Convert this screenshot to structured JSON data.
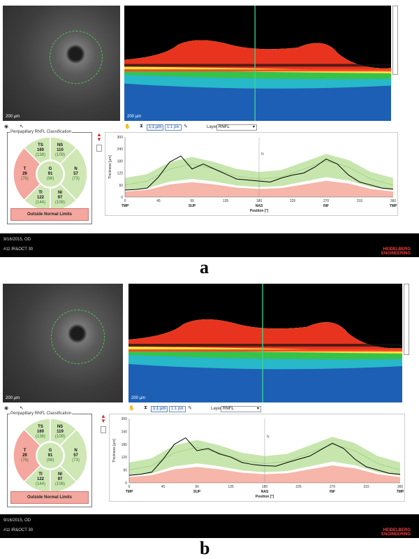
{
  "colors": {
    "normal_green": "#cfe7b5",
    "borderline": "#d7ecb9",
    "outside_red": "#f3a79e",
    "measurement_line": "#000000",
    "green_band": "#b9e09a",
    "red_band": "#f6b6aa"
  },
  "icons": [
    "eye-icon",
    "cursor-icon",
    "hourglass-icon",
    "paint-icon"
  ],
  "panels": [
    {
      "letter": "a",
      "scale_fundus": "200 µm",
      "scale_oct": "200 µm",
      "toolbar": {
        "btn1": "1:1 µm",
        "btn2": "1:1 pix",
        "layer_label": "Layer:",
        "layer_value": "RNFL"
      },
      "rnfl": {
        "title": "Peripapillary RNFL Classification",
        "sectors": {
          "TS": {
            "label": "TS",
            "value": "160",
            "ref": "(138)"
          },
          "NS": {
            "label": "NS",
            "value": "110",
            "ref": "(109)"
          },
          "T": {
            "label": "T",
            "value": "29",
            "ref": "(76)"
          },
          "G": {
            "label": "G",
            "value": "91",
            "ref": "(98)"
          },
          "N": {
            "label": "N",
            "value": "57",
            "ref": "(73)"
          },
          "TI": {
            "label": "TI",
            "value": "122",
            "ref": "(144)"
          },
          "NI": {
            "label": "NI",
            "value": "97",
            "ref": "(108)"
          }
        },
        "classification": "Outside Normal Limits"
      },
      "status": {
        "date_eye": "9/16/2015, OD",
        "scan": "#11 IR&OCT 30"
      },
      "brand_line1": "HEIDELBERG",
      "brand_line2": "ENGINEERING",
      "chart_marker": "N"
    },
    {
      "letter": "b",
      "scale_fundus": "200 µm",
      "scale_oct": "200 µm",
      "toolbar": {
        "btn1": "1:1 µm",
        "btn2": "1:1 pix",
        "layer_label": "Layer:",
        "layer_value": "RNFL"
      },
      "rnfl": {
        "title": "Peripapillary RNFL Classification",
        "sectors": {
          "TS": {
            "label": "TS",
            "value": "160",
            "ref": "(138)"
          },
          "NS": {
            "label": "NS",
            "value": "119",
            "ref": "(109)"
          },
          "T": {
            "label": "T",
            "value": "29",
            "ref": "(76)"
          },
          "G": {
            "label": "G",
            "value": "91",
            "ref": "(98)"
          },
          "N": {
            "label": "N",
            "value": "57",
            "ref": "(73)"
          },
          "TI": {
            "label": "TI",
            "value": "122",
            "ref": "(144)"
          },
          "NI": {
            "label": "NI",
            "value": "97",
            "ref": "(108)"
          }
        },
        "classification": "Outside Normal Limits"
      },
      "status": {
        "date_eye": "9/16/2015, OD",
        "scan": "#11 IR&OCT 30"
      },
      "brand_line1": "HEIDELBERG",
      "brand_line2": "ENGINEERING",
      "chart_marker": "N"
    }
  ],
  "chart_data": [
    {
      "type": "line",
      "ylabel": "Thickness [µm]",
      "xlabel": "Position [°]",
      "ylim": [
        0,
        300
      ],
      "yticks": [
        0,
        60,
        120,
        180,
        240,
        300
      ],
      "xlim": [
        0,
        360
      ],
      "xticks": [
        0,
        45,
        90,
        135,
        180,
        225,
        270,
        315,
        360
      ],
      "region_labels": [
        "TMP",
        "SUP",
        "NAS",
        "INF",
        "TMP"
      ],
      "series": [
        {
          "x": [
            0,
            15,
            30,
            45,
            60,
            75,
            90,
            105,
            120,
            135,
            150,
            165,
            180,
            195,
            210,
            225,
            240,
            255,
            270,
            285,
            300,
            315,
            330,
            345,
            360
          ],
          "values": [
            35,
            38,
            45,
            100,
            175,
            205,
            140,
            165,
            140,
            115,
            90,
            85,
            80,
            75,
            95,
            110,
            120,
            150,
            190,
            165,
            110,
            75,
            60,
            45,
            40
          ]
        },
        {
          "x": [
            0,
            30,
            60,
            90,
            120,
            150,
            180,
            210,
            240,
            270,
            300,
            330,
            360
          ],
          "values": [
            60,
            80,
            140,
            165,
            140,
            105,
            90,
            100,
            140,
            180,
            150,
            90,
            60
          ]
        }
      ]
    },
    {
      "type": "line",
      "ylabel": "Thickness [µm]",
      "xlabel": "Position [°]",
      "ylim": [
        0,
        300
      ],
      "yticks": [
        0,
        60,
        120,
        180,
        240,
        300
      ],
      "xlim": [
        0,
        360
      ],
      "xticks": [
        0,
        45,
        90,
        135,
        180,
        225,
        270,
        315,
        360
      ],
      "region_labels": [
        "TMP",
        "SUP",
        "NAS",
        "INF",
        "TMP"
      ],
      "series": [
        {
          "x": [
            0,
            15,
            30,
            45,
            60,
            75,
            90,
            105,
            120,
            135,
            150,
            165,
            180,
            195,
            210,
            225,
            240,
            255,
            270,
            285,
            300,
            315,
            330,
            345,
            360
          ],
          "values": [
            35,
            40,
            50,
            110,
            180,
            210,
            150,
            160,
            135,
            120,
            95,
            85,
            80,
            78,
            95,
            110,
            125,
            155,
            185,
            160,
            110,
            75,
            60,
            45,
            40
          ]
        },
        {
          "x": [
            0,
            30,
            60,
            90,
            120,
            150,
            180,
            210,
            240,
            270,
            300,
            330,
            360
          ],
          "values": [
            60,
            80,
            140,
            165,
            140,
            105,
            90,
            100,
            140,
            180,
            150,
            90,
            60
          ]
        }
      ]
    }
  ]
}
